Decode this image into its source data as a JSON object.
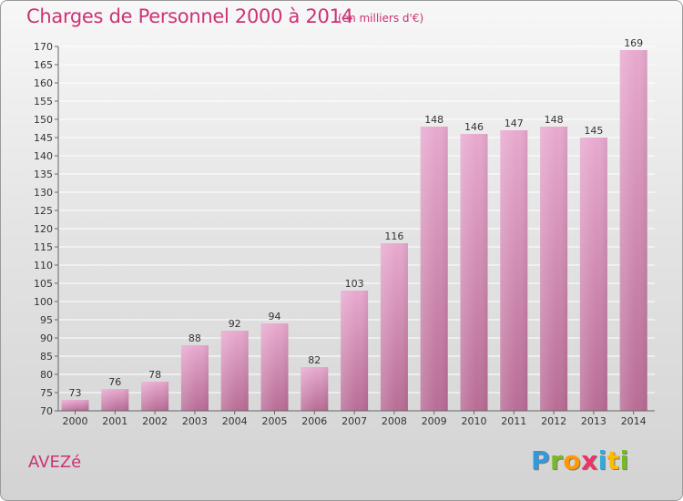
{
  "chart_title": "Charges de Personnel 2000 à 2014",
  "unit_note": "(en milliers d'€)",
  "commune": "AVEZé",
  "brand": {
    "letters": [
      "P",
      "r",
      "o",
      "x",
      "i",
      "t",
      "i"
    ],
    "colors": [
      "#3399dd",
      "#77bb22",
      "#ff9900",
      "#ee3366",
      "#33aadd",
      "#ffbb00",
      "#77bb22"
    ]
  },
  "colors": {
    "bar_top": "#e8a9cf",
    "bar_bottom": "#b86c95",
    "title": "#cc3377",
    "grid": "#ffffff",
    "axis_text": "#333333"
  },
  "chart_data": {
    "type": "bar",
    "title": "Charges de Personnel 2000 à 2014",
    "xlabel": "",
    "ylabel": "",
    "ylim": [
      70,
      170
    ],
    "ytick_step": 5,
    "grid": true,
    "categories": [
      "2000",
      "2001",
      "2002",
      "2003",
      "2004",
      "2005",
      "2006",
      "2007",
      "2008",
      "2009",
      "2010",
      "2011",
      "2012",
      "2013",
      "2014"
    ],
    "values": [
      73,
      76,
      78,
      88,
      92,
      94,
      82,
      103,
      116,
      148,
      146,
      147,
      148,
      145,
      169
    ]
  }
}
